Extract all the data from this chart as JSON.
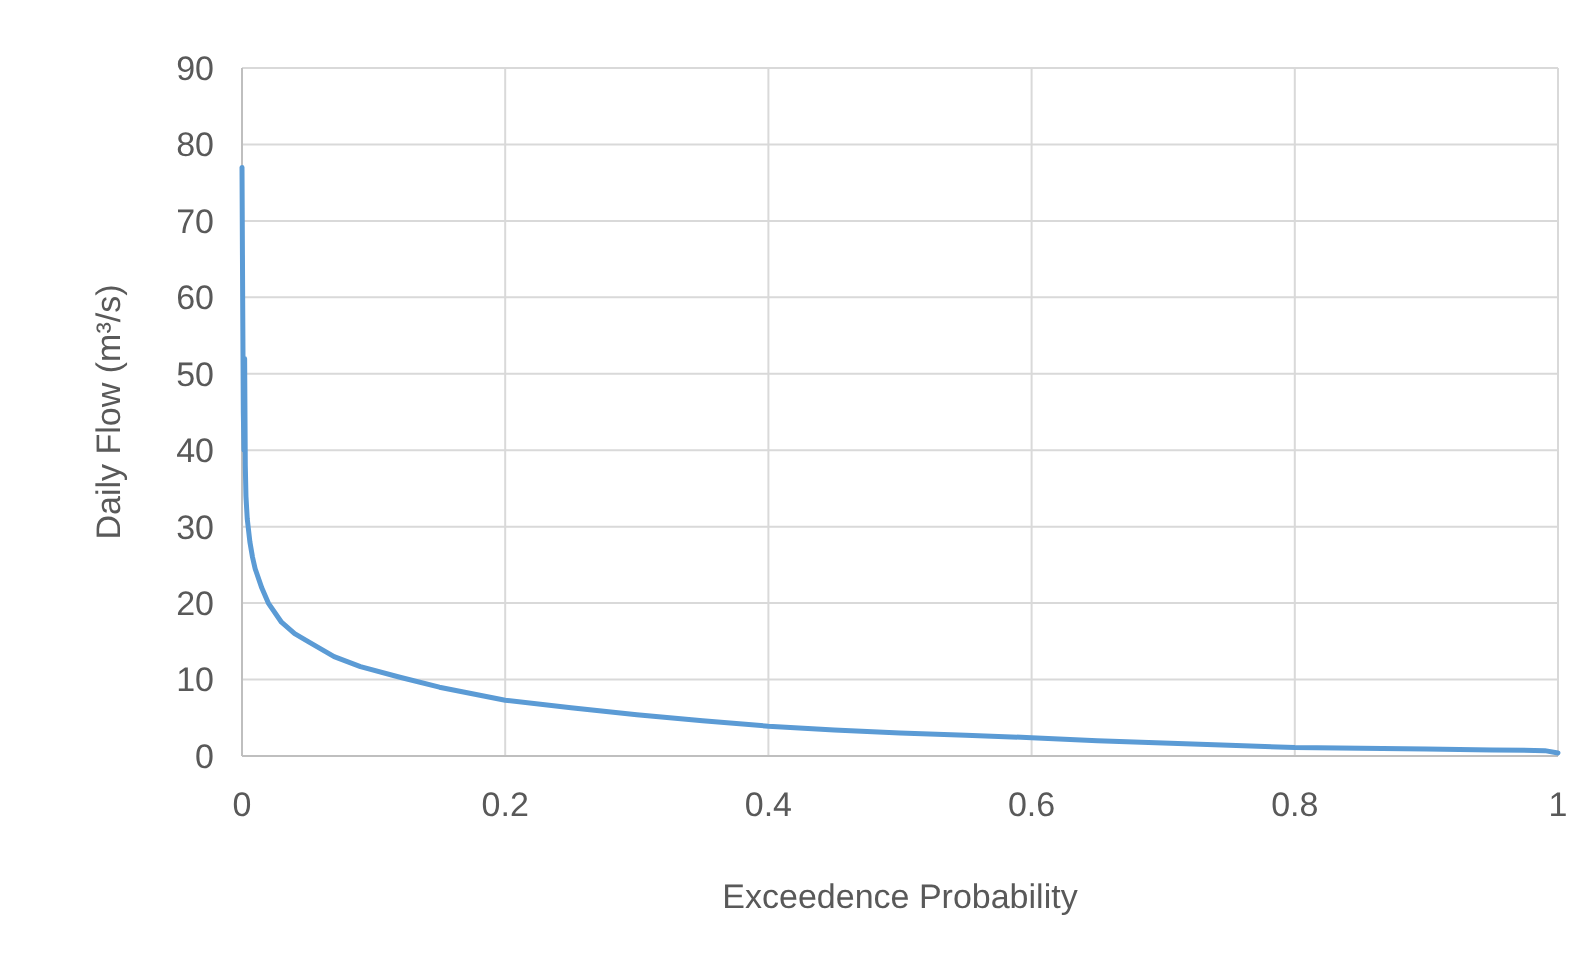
{
  "chart_data": {
    "type": "line",
    "xlabel": "Exceedence Probability",
    "ylabel": "Daily Flow (m³/s)",
    "x": [
      0,
      0.0005,
      0.001,
      0.0015,
      0.002,
      0.0025,
      0.003,
      0.004,
      0.006,
      0.008,
      0.01,
      0.015,
      0.02,
      0.03,
      0.04,
      0.05,
      0.07,
      0.09,
      0.12,
      0.15,
      0.2,
      0.25,
      0.3,
      0.35,
      0.4,
      0.45,
      0.5,
      0.55,
      0.6,
      0.65,
      0.7,
      0.75,
      0.8,
      0.85,
      0.9,
      0.95,
      0.99,
      1
    ],
    "series": [
      {
        "color": "#5b9bd5",
        "values": [
          77,
          60,
          45,
          40,
          52,
          38,
          34,
          31,
          28,
          26,
          24.5,
          22,
          20,
          17.5,
          16,
          15,
          13,
          11.7,
          10.3,
          9,
          7.3,
          6.3,
          5.4,
          4.6,
          3.9,
          3.4,
          3,
          2.7,
          2.4,
          2,
          1.7,
          1.4,
          1.1,
          1,
          0.9,
          0.8,
          0.7,
          0.4
        ]
      }
    ],
    "xlim": [
      0,
      1
    ],
    "xticks": [
      0,
      0.2,
      0.4,
      0.6,
      0.8,
      1
    ],
    "ylim": [
      0,
      90
    ],
    "yticks": [
      0,
      10,
      20,
      30,
      40,
      50,
      60,
      70,
      80,
      90
    ],
    "grid": true,
    "marker": "none",
    "line_style": "solid"
  }
}
